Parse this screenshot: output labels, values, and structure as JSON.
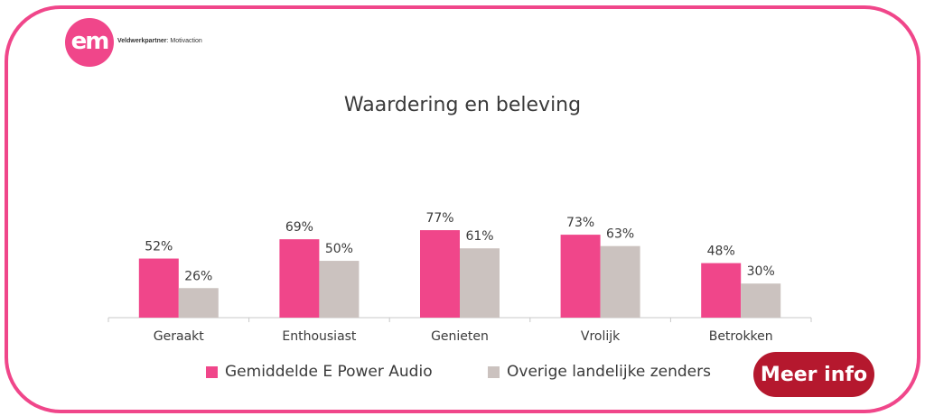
{
  "logo": {
    "text": "em"
  },
  "partner": {
    "label": "Veldwerkpartner",
    "value": ": Motivaction"
  },
  "button": {
    "label": "Meer info"
  },
  "colors": {
    "pink": "#f0468a",
    "grey": "#cbc2bf",
    "button": "#b5182e",
    "frame": "#f0468a"
  },
  "chart_data": {
    "type": "bar",
    "title": "Waardering en beleving",
    "categories": [
      "Geraakt",
      "Enthousiast",
      "Genieten",
      "Vrolijk",
      "Betrokken"
    ],
    "series": [
      {
        "name": "Gemiddelde E Power Audio",
        "values": [
          52,
          69,
          77,
          73,
          48
        ],
        "labels": [
          "52%",
          "69%",
          "77%",
          "73%",
          "48%"
        ],
        "color": "#f0468a"
      },
      {
        "name": "Overige landelijke zenders",
        "values": [
          26,
          50,
          61,
          63,
          30
        ],
        "labels": [
          "26%",
          "50%",
          "61%",
          "63%",
          "30%"
        ],
        "color": "#cbc2bf"
      }
    ],
    "legend": "bottom",
    "grid": false
  }
}
